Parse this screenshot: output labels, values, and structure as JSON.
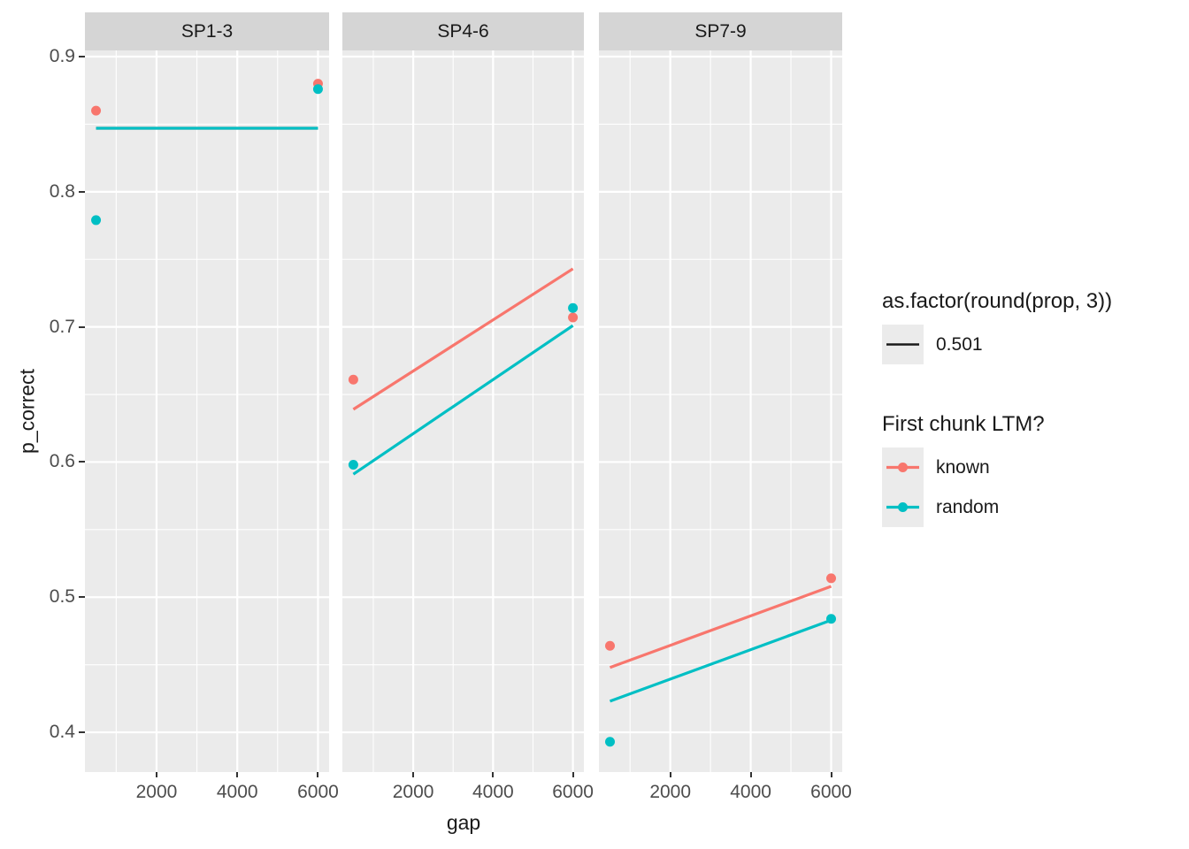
{
  "chart_data": {
    "type": "scatter",
    "title": "",
    "xlabel": "gap",
    "ylabel": "p_correct",
    "grid": true,
    "xlim": [
      225,
      6275
    ],
    "ylim": [
      0.3706,
      0.9046
    ],
    "x_ticks": [
      {
        "value": 2000,
        "label": "2000"
      },
      {
        "value": 4000,
        "label": "4000"
      },
      {
        "value": 6000,
        "label": "6000"
      }
    ],
    "y_ticks": [
      {
        "value": 0.9,
        "label": "0.9"
      },
      {
        "value": 0.8,
        "label": "0.8"
      },
      {
        "value": 0.7,
        "label": "0.7"
      },
      {
        "value": 0.6,
        "label": "0.6"
      },
      {
        "value": 0.5,
        "label": "0.5"
      },
      {
        "value": 0.4,
        "label": "0.4"
      }
    ],
    "x_minor": [
      1000,
      3000,
      5000
    ],
    "y_minor": [
      0.85,
      0.75,
      0.65,
      0.55,
      0.45
    ],
    "colors": {
      "panel_bg": "#EBEBEB",
      "strip_bg": "#D5D5D5",
      "grid": "#FFFFFF",
      "tick_text": "#4D4D4D",
      "known": "#F8766D",
      "random": "#00BFC4",
      "prop_line": "#1A1A1A"
    },
    "series": [
      {
        "name": "known",
        "color": "#F8766D"
      },
      {
        "name": "random",
        "color": "#00BFC4"
      }
    ],
    "facets": [
      {
        "label": "SP1-3",
        "lines": [
          {
            "series": "known",
            "points": [
              [
                500,
                0.847
              ],
              [
                6000,
                0.847
              ]
            ]
          },
          {
            "series": "random",
            "points": [
              [
                500,
                0.847
              ],
              [
                6000,
                0.847
              ]
            ]
          }
        ],
        "points": [
          {
            "series": "known",
            "x": 500,
            "y": 0.86
          },
          {
            "series": "known",
            "x": 6000,
            "y": 0.88
          },
          {
            "series": "random",
            "x": 500,
            "y": 0.779
          },
          {
            "series": "random",
            "x": 6000,
            "y": 0.876
          }
        ]
      },
      {
        "label": "SP4-6",
        "lines": [
          {
            "series": "known",
            "points": [
              [
                500,
                0.639
              ],
              [
                6000,
                0.743
              ]
            ]
          },
          {
            "series": "random",
            "points": [
              [
                500,
                0.591
              ],
              [
                6000,
                0.701
              ]
            ]
          }
        ],
        "points": [
          {
            "series": "known",
            "x": 500,
            "y": 0.661
          },
          {
            "series": "known",
            "x": 6000,
            "y": 0.707
          },
          {
            "series": "random",
            "x": 500,
            "y": 0.598
          },
          {
            "series": "random",
            "x": 6000,
            "y": 0.714
          }
        ]
      },
      {
        "label": "SP7-9",
        "lines": [
          {
            "series": "known",
            "points": [
              [
                500,
                0.448
              ],
              [
                6000,
                0.508
              ]
            ]
          },
          {
            "series": "random",
            "points": [
              [
                500,
                0.423
              ],
              [
                6000,
                0.483
              ]
            ]
          }
        ],
        "points": [
          {
            "series": "known",
            "x": 500,
            "y": 0.464
          },
          {
            "series": "known",
            "x": 6000,
            "y": 0.514
          },
          {
            "series": "random",
            "x": 500,
            "y": 0.393
          },
          {
            "series": "random",
            "x": 6000,
            "y": 0.484
          }
        ]
      }
    ],
    "legends": [
      {
        "title": "as.factor(round(prop, 3))",
        "entries": [
          {
            "label": "0.501",
            "type": "line",
            "color": "#1A1A1A"
          }
        ]
      },
      {
        "title": "First chunk LTM?",
        "entries": [
          {
            "label": "known",
            "type": "point-line",
            "color": "#F8766D"
          },
          {
            "label": "random",
            "type": "point-line",
            "color": "#00BFC4"
          }
        ]
      }
    ]
  }
}
